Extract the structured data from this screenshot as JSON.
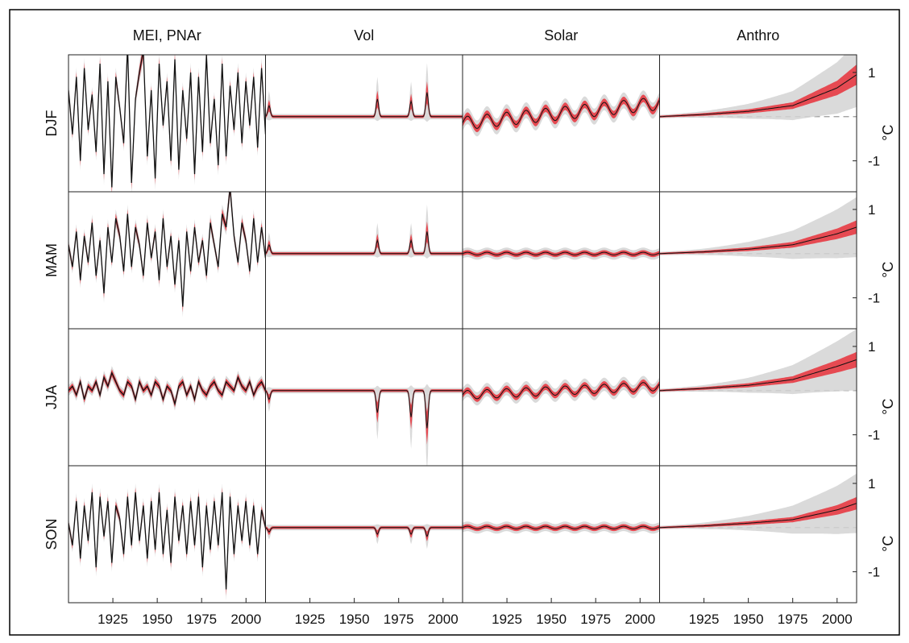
{
  "chart_data": {
    "type": "line",
    "columns": [
      "MEI, PNAr",
      "Vol",
      "Solar",
      "Anthro"
    ],
    "rows": [
      "DJF",
      "MAM",
      "JJA",
      "SON"
    ],
    "x_ticks": [
      1925,
      1950,
      1975,
      2000
    ],
    "xlim": [
      1900,
      2011
    ],
    "y_ticks": [
      1,
      -1
    ],
    "ylim": [
      -1.7,
      1.4
    ],
    "units": "°C",
    "grid": false,
    "colors": {
      "mean_line": "#111111",
      "inner_band": "#e8303a",
      "outer_band": "#d4d4d4",
      "zero_line": "#999999",
      "axes": "#222222"
    },
    "series": {
      "MEI, PNAr": {
        "DJF": [
          0.6,
          -0.4,
          0.9,
          -1.0,
          1.1,
          -0.3,
          0.5,
          -0.8,
          1.2,
          -1.3,
          0.8,
          -1.6,
          0.9,
          0.2,
          -0.6,
          1.6,
          -1.5,
          0.4,
          1.0,
          1.5,
          -0.9,
          0.6,
          -1.4,
          1.2,
          -0.2,
          0.8,
          -1.0,
          1.3,
          -1.2,
          0.6,
          -0.5,
          1.0,
          -1.3,
          0.9,
          -0.8,
          1.4,
          -0.6,
          0.4,
          -1.1,
          1.2,
          -0.9,
          0.7,
          -0.3,
          1.0,
          -0.6,
          0.8,
          -0.2,
          0.9,
          -0.7,
          1.1,
          -0.4
        ],
        "MAM": [
          0.2,
          -0.3,
          0.5,
          -0.6,
          0.4,
          -0.2,
          0.7,
          -0.5,
          0.3,
          -0.9,
          0.6,
          -0.2,
          0.8,
          0.4,
          -0.4,
          0.9,
          -0.3,
          0.6,
          0.2,
          -0.5,
          0.7,
          -0.1,
          0.5,
          -0.6,
          0.8,
          -0.3,
          0.4,
          -0.7,
          0.3,
          -1.2,
          0.5,
          -0.4,
          0.6,
          -0.2,
          0.3,
          -0.5,
          0.7,
          0.2,
          -0.3,
          0.9,
          0.6,
          1.5,
          0.4,
          -0.2,
          0.7,
          0.3,
          -0.4,
          0.8,
          -0.2,
          0.6,
          -0.1
        ],
        "JJA": [
          0.0,
          0.1,
          -0.1,
          0.2,
          -0.2,
          0.1,
          0.0,
          0.2,
          -0.1,
          0.3,
          0.1,
          0.4,
          0.2,
          0.0,
          -0.1,
          0.2,
          0.1,
          -0.2,
          0.2,
          0.0,
          0.1,
          -0.1,
          0.2,
          0.1,
          -0.2,
          0.1,
          0.0,
          -0.3,
          0.1,
          0.2,
          -0.1,
          0.1,
          -0.2,
          0.2,
          0.0,
          -0.1,
          0.1,
          0.2,
          0.0,
          -0.1,
          0.2,
          0.1,
          0.0,
          0.3,
          0.1,
          0.0,
          0.2,
          -0.1,
          0.1,
          0.2,
          0.0
        ],
        "SON": [
          0.1,
          -0.4,
          0.6,
          -0.7,
          0.5,
          -0.3,
          0.8,
          -0.9,
          0.7,
          -0.2,
          0.6,
          -0.8,
          0.5,
          0.2,
          -0.6,
          0.7,
          -0.4,
          0.8,
          -0.3,
          0.5,
          -0.7,
          0.6,
          -0.5,
          0.8,
          -0.6,
          0.4,
          -0.8,
          0.7,
          -0.3,
          0.5,
          -0.6,
          0.6,
          -0.4,
          0.7,
          -0.9,
          0.5,
          -0.5,
          0.6,
          -0.4,
          0.8,
          -1.4,
          0.7,
          -0.6,
          0.5,
          -0.3,
          0.6,
          -0.4,
          0.5,
          -0.6,
          0.4,
          0.0
        ]
      },
      "Vol": {
        "DJF": {
          "baseline": 0.0,
          "events": [
            [
              1902,
              0.25
            ],
            [
              1963,
              0.4
            ],
            [
              1982,
              0.35
            ],
            [
              1991,
              0.55
            ]
          ]
        },
        "MAM": {
          "baseline": 0.0,
          "events": [
            [
              1902,
              0.2
            ],
            [
              1963,
              0.3
            ],
            [
              1982,
              0.3
            ],
            [
              1991,
              0.5
            ]
          ]
        },
        "JJA": {
          "baseline": 0.0,
          "events": [
            [
              1902,
              -0.2
            ],
            [
              1963,
              -0.5
            ],
            [
              1982,
              -0.6
            ],
            [
              1991,
              -0.85
            ]
          ]
        },
        "SON": {
          "baseline": 0.0,
          "events": [
            [
              1902,
              -0.1
            ],
            [
              1963,
              -0.15
            ],
            [
              1982,
              -0.15
            ],
            [
              1991,
              -0.2
            ]
          ]
        }
      },
      "Solar": {
        "DJF": {
          "start": -0.15,
          "end": 0.3,
          "amplitude": 0.15
        },
        "MAM": {
          "start": 0.0,
          "end": 0.0,
          "amplitude": 0.03
        },
        "JJA": {
          "start": -0.1,
          "end": 0.1,
          "amplitude": 0.1
        },
        "SON": {
          "start": 0.0,
          "end": 0.0,
          "amplitude": 0.03
        }
      },
      "Anthro": {
        "DJF": [
          [
            1900,
            0.0
          ],
          [
            1925,
            0.05
          ],
          [
            1950,
            0.12
          ],
          [
            1975,
            0.25
          ],
          [
            2000,
            0.65
          ],
          [
            2011,
            0.95
          ]
        ],
        "MAM": [
          [
            1900,
            0.0
          ],
          [
            1925,
            0.04
          ],
          [
            1950,
            0.1
          ],
          [
            1975,
            0.2
          ],
          [
            2000,
            0.45
          ],
          [
            2011,
            0.6
          ]
        ],
        "JJA": [
          [
            1900,
            0.0
          ],
          [
            1925,
            0.05
          ],
          [
            1950,
            0.12
          ],
          [
            1975,
            0.25
          ],
          [
            2000,
            0.55
          ],
          [
            2011,
            0.7
          ]
        ],
        "SON": [
          [
            1900,
            0.0
          ],
          [
            1925,
            0.04
          ],
          [
            1950,
            0.1
          ],
          [
            1975,
            0.18
          ],
          [
            2000,
            0.4
          ],
          [
            2011,
            0.55
          ]
        ]
      }
    }
  }
}
